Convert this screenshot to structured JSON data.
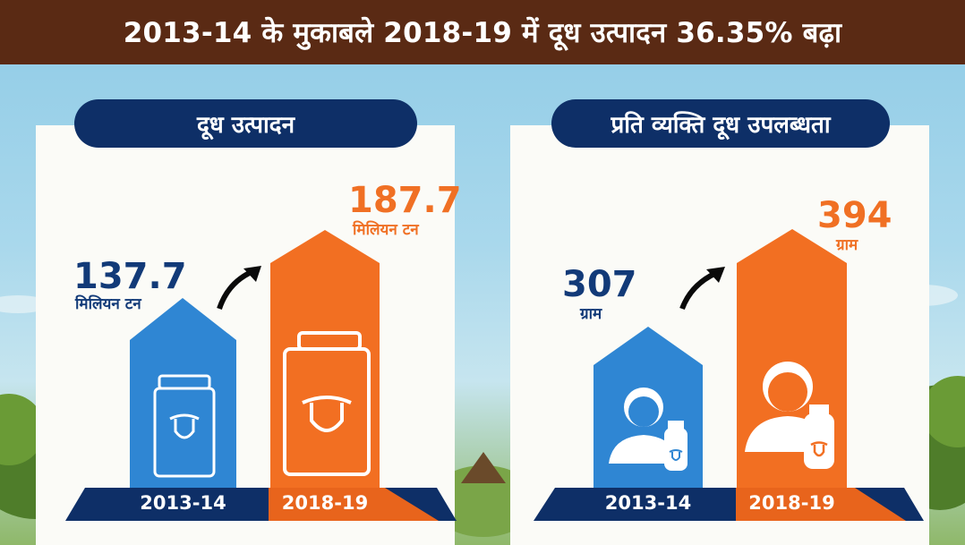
{
  "header": {
    "title": "2013-14 के मुकाबले 2018-19 में दूध उत्पादन 36.35% बढ़ा"
  },
  "colors": {
    "navy": "#0e2f67",
    "blue": "#2f86d3",
    "orange": "#f26f22",
    "brown": "#5a2a14"
  },
  "chart_data": [
    {
      "type": "bar",
      "title": "दूध उत्पादन",
      "categories": [
        "2013-14",
        "2018-19"
      ],
      "values": [
        137.7,
        187.7
      ],
      "value_labels": [
        "137.7",
        "187.7"
      ],
      "unit": "मिलियन टन",
      "icons": [
        "milk-carton-icon",
        "milk-carton-icon"
      ]
    },
    {
      "type": "bar",
      "title": "प्रति व्यक्ति दूध उपलब्धता",
      "categories": [
        "2013-14",
        "2018-19"
      ],
      "values": [
        307,
        394
      ],
      "value_labels": [
        "307",
        "394"
      ],
      "unit": "ग्राम",
      "icons": [
        "person-with-milk-bottle-icon",
        "person-with-milk-bottle-icon"
      ]
    }
  ]
}
